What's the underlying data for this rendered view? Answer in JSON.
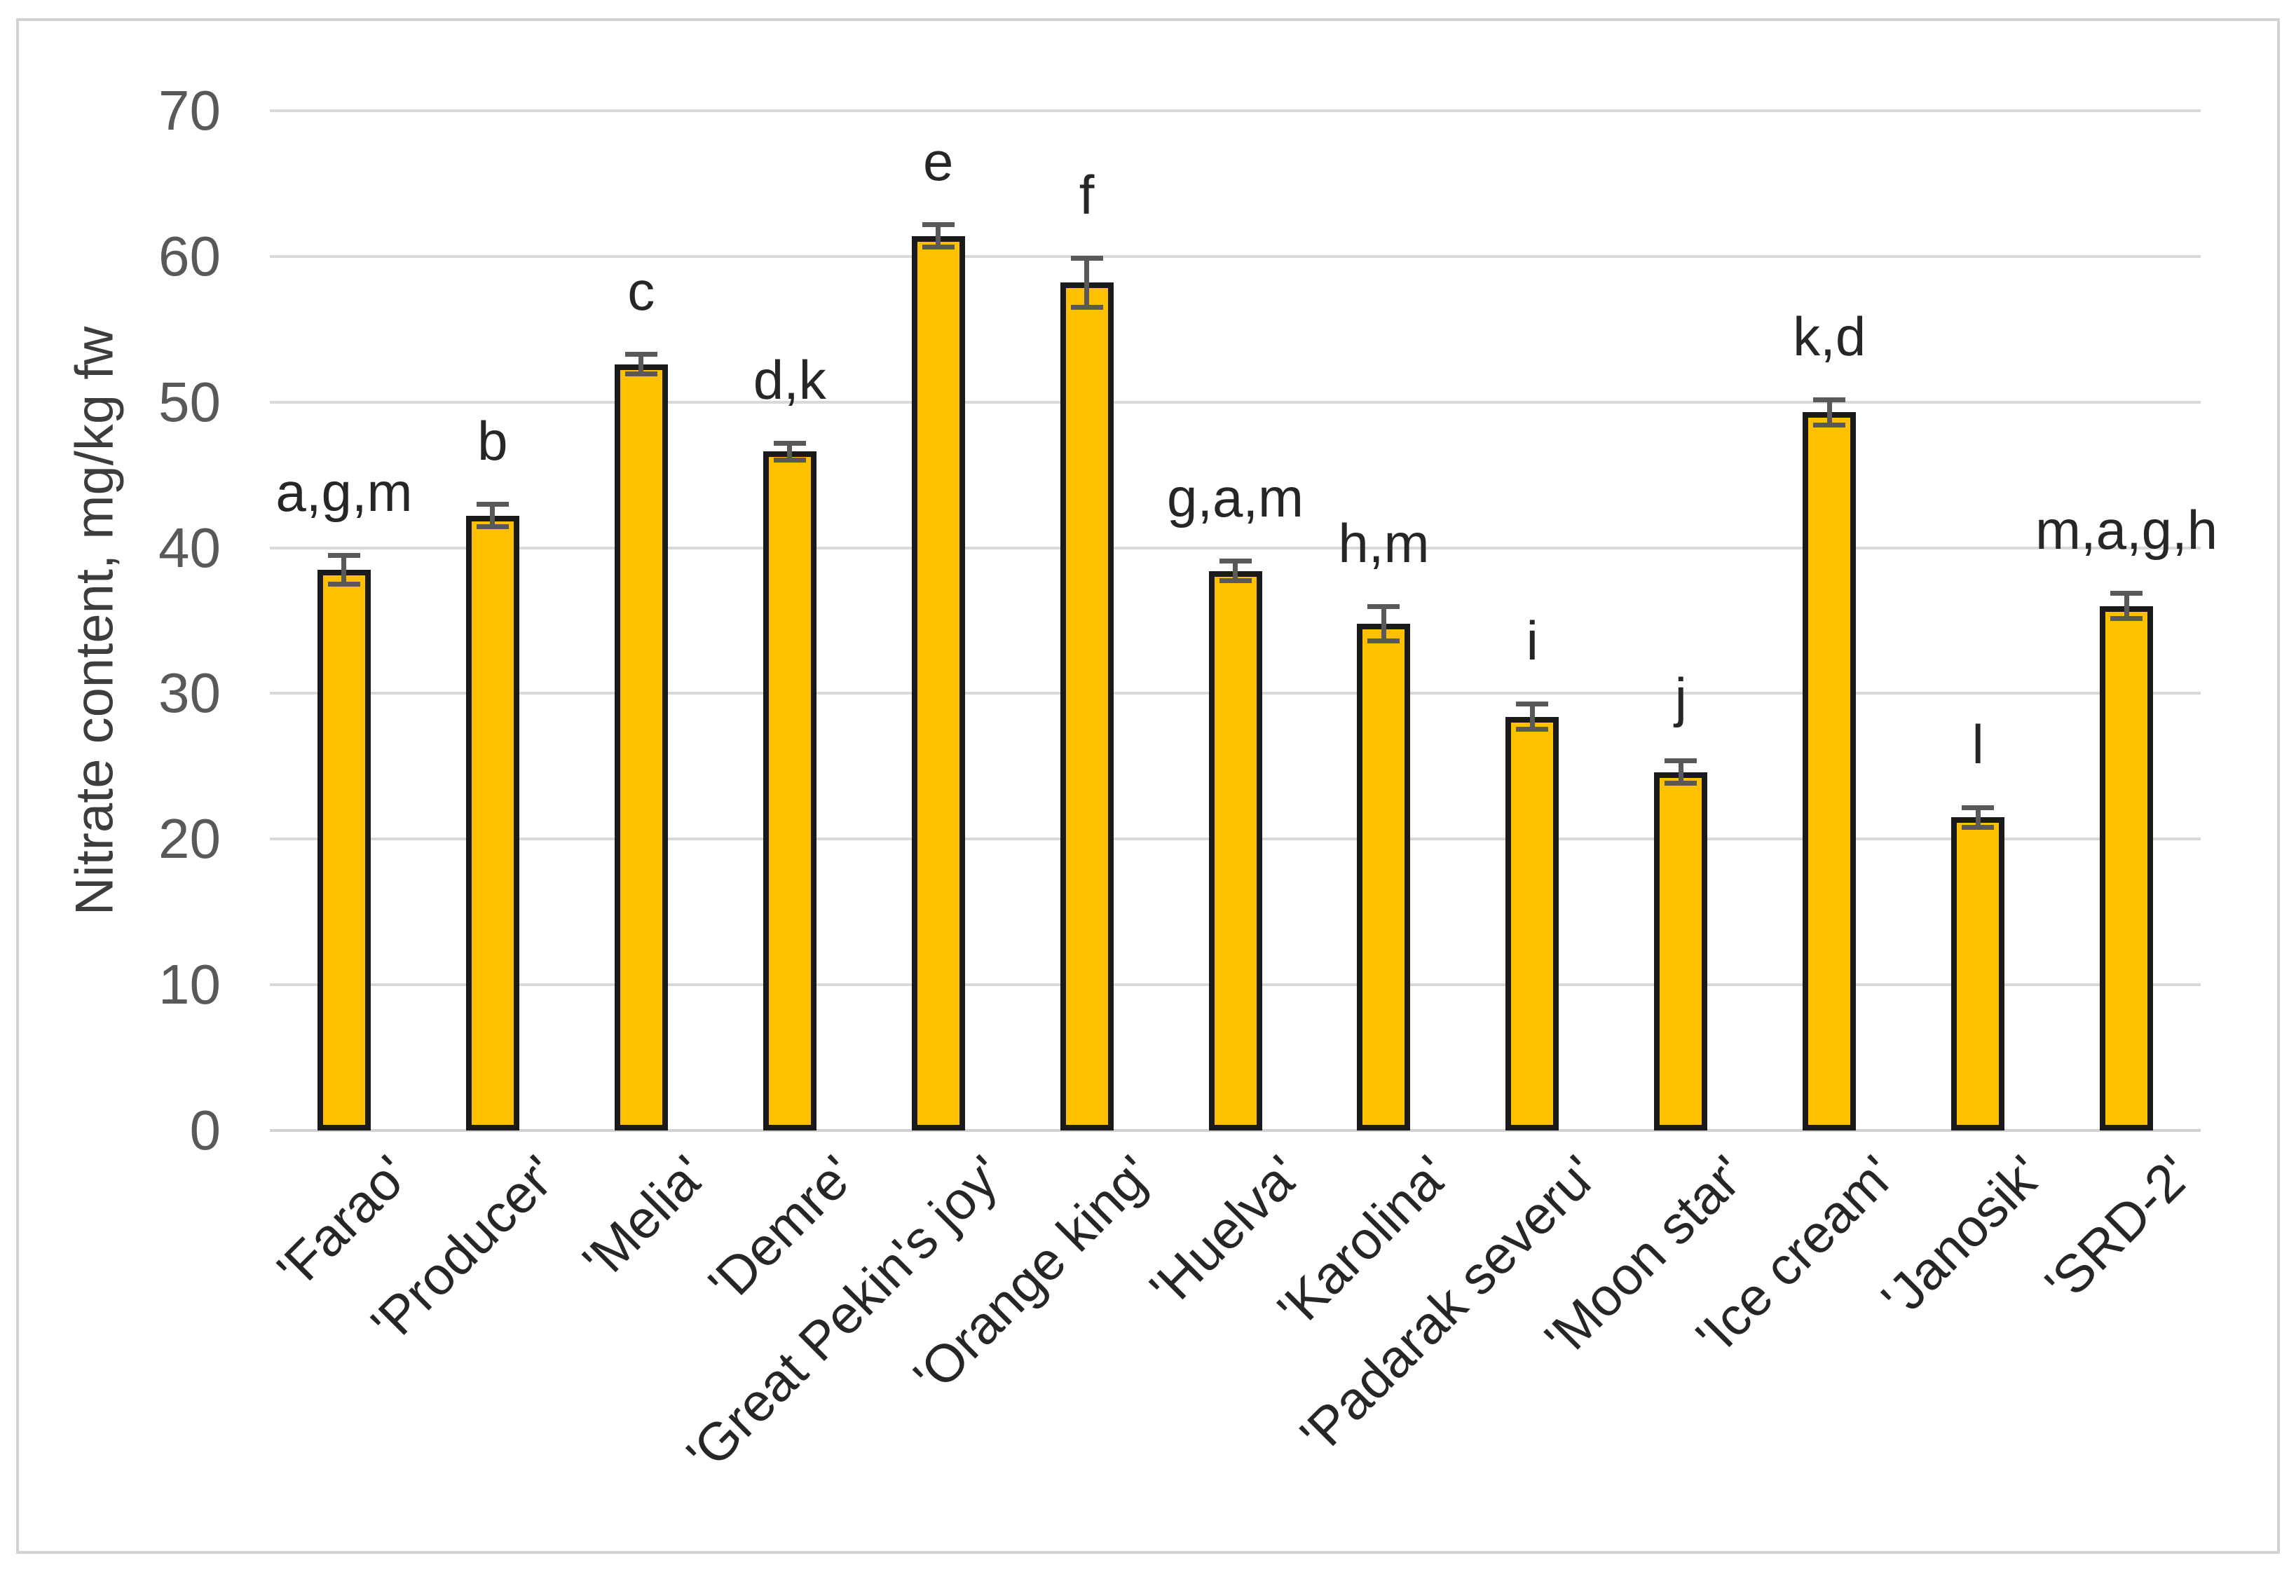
{
  "chart_data": {
    "type": "bar",
    "title": "",
    "ylabel": "Nitrate content, mg/kg fw",
    "xlabel": "",
    "ylim": [
      0,
      70
    ],
    "yticks": [
      0,
      10,
      20,
      30,
      40,
      50,
      60,
      70
    ],
    "grid": true,
    "legend_position": "none",
    "bar_color": "#FFC000",
    "bar_border_color": "#1a1a1a",
    "error_bar_color": "#595959",
    "gridline_color": "#d9d9d9",
    "tick_label_color": "#595959",
    "annotation_color": "#262626",
    "categories": [
      "'Farao'",
      "'Producer'",
      "'Melia'",
      "'Demre'",
      "'Great Pekin's joy'",
      "'Orange king'",
      "'Huelva'",
      "'Karolina'",
      "'Padarak severu'",
      "'Moon star'",
      "'Ice cream'",
      "'Janosik'",
      "'SRD-2'"
    ],
    "values": [
      38.5,
      42.2,
      52.6,
      46.6,
      61.4,
      58.2,
      38.4,
      34.8,
      28.4,
      24.6,
      49.3,
      21.5,
      36.0
    ],
    "errors": [
      1.0,
      0.8,
      0.7,
      0.6,
      0.8,
      1.7,
      0.7,
      1.2,
      0.9,
      0.8,
      0.9,
      0.7,
      0.9
    ],
    "significance_labels": [
      "a,g,m",
      "b",
      "c",
      "d,k",
      "e",
      "f",
      "g,a,m",
      "h,m",
      "i",
      "j",
      "k,d",
      "l",
      "m,a,g,h"
    ]
  }
}
